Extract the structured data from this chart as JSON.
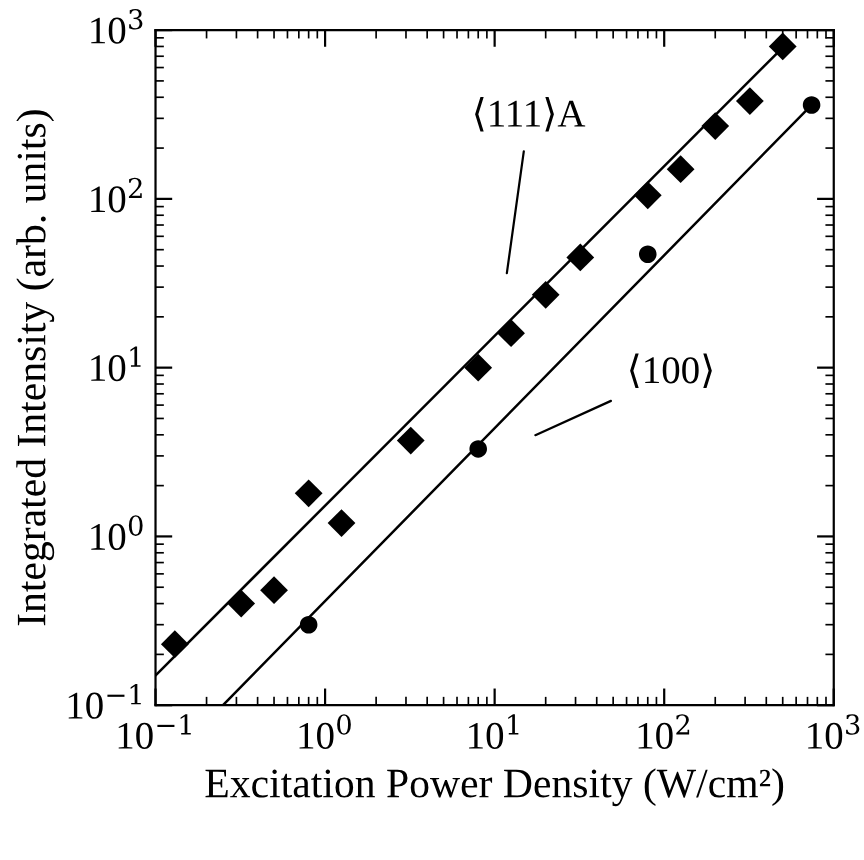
{
  "chart_data": {
    "type": "scatter",
    "xlabel": "Excitation Power Density (W/cm²)",
    "ylabel": "Integrated Intensity (arb. units)",
    "log": "xy",
    "xlim": [
      0.1,
      1000
    ],
    "ylim": [
      0.1,
      1000
    ],
    "xticks": [
      {
        "value": 0.1,
        "label": "10$^{−1}$"
      },
      {
        "value": 1,
        "label": "10$^{0}$"
      },
      {
        "value": 10,
        "label": "10$^{1}$"
      },
      {
        "value": 100,
        "label": "10$^{2}$"
      },
      {
        "value": 1000,
        "label": "10$^{3}$"
      }
    ],
    "yticks": [
      {
        "value": 0.1,
        "label": "10$^{−1}$"
      },
      {
        "value": 1,
        "label": "10$^{0}$"
      },
      {
        "value": 10,
        "label": "10$^{1}$"
      },
      {
        "value": 100,
        "label": "10$^{2}$"
      },
      {
        "value": 1000,
        "label": "10$^{3}$"
      }
    ],
    "grid": false,
    "legend": false,
    "series": [
      {
        "color": "#000000",
        "marker": "diamond",
        "x": [
          0.13,
          0.32,
          0.5,
          0.8,
          1.25,
          3.2,
          8,
          12.5,
          20,
          32,
          80,
          125,
          200,
          320,
          500
        ],
        "values": [
          0.23,
          0.4,
          0.48,
          1.8,
          1.2,
          3.7,
          10,
          16,
          27,
          45,
          105,
          150,
          270,
          380,
          800
        ]
      },
      {
        "color": "#000000",
        "marker": "circle",
        "x": [
          0.8,
          8,
          80,
          740
        ],
        "values": [
          0.3,
          3.3,
          47,
          360
        ]
      },
      {
        "type": "line",
        "color": "#000000",
        "marker": "none",
        "line_style": "solid",
        "x": [
          0.1,
          520
        ],
        "values": [
          0.15,
          820
        ]
      },
      {
        "type": "line",
        "color": "#000000",
        "marker": "none",
        "line_style": "solid",
        "x": [
          0.25,
          740
        ],
        "values": [
          0.1,
          360
        ]
      }
    ],
    "annotations": [
      "⟨111⟩A",
      "⟨100⟩"
    ]
  }
}
